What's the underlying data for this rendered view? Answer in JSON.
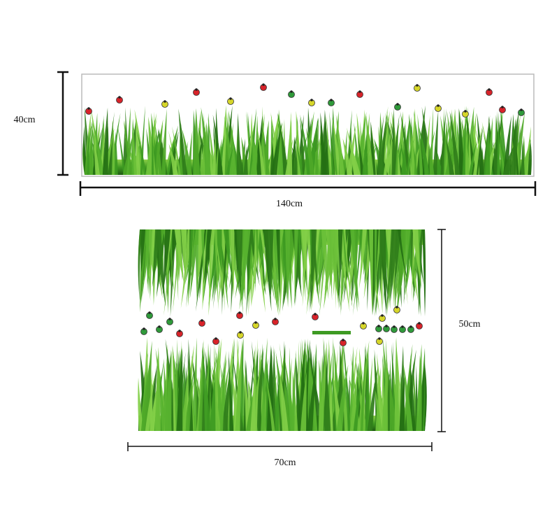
{
  "top_sticker": {
    "height_label": "40cm",
    "width_label": "140cm"
  },
  "bottom_sticker": {
    "height_label": "50cm",
    "width_label": "70cm"
  }
}
